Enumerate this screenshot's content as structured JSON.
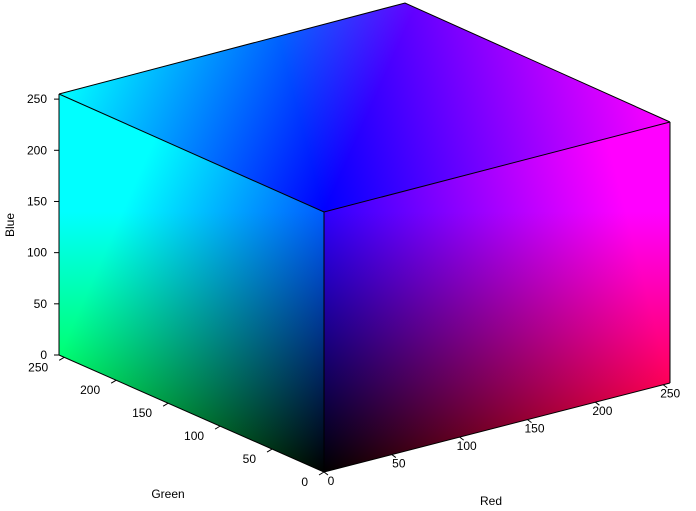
{
  "chart_data": {
    "type": "rgb-color-cube",
    "title": "",
    "axes": {
      "x": {
        "label": "Red",
        "range": [
          0,
          255
        ],
        "ticks": [
          0,
          50,
          100,
          150,
          200,
          250
        ]
      },
      "y": {
        "label": "Green",
        "range": [
          0,
          255
        ],
        "ticks": [
          0,
          50,
          100,
          150,
          200,
          250
        ]
      },
      "z": {
        "label": "Blue",
        "range": [
          0,
          255
        ],
        "ticks": [
          0,
          50,
          100,
          150,
          200,
          250
        ]
      }
    },
    "grid": false,
    "visible_faces": [
      {
        "name": "green-zero-face",
        "axes": [
          "Red",
          "Blue"
        ],
        "corners": {
          "black": "#000000",
          "red": "#ff0000",
          "blue": "#0000ff",
          "magenta": "#ff00ff"
        }
      },
      {
        "name": "red-zero-face",
        "axes": [
          "Green",
          "Blue"
        ],
        "corners": {
          "black": "#000000",
          "green": "#00ff00",
          "blue": "#0000ff",
          "cyan": "#00ffff"
        }
      },
      {
        "name": "blue-max-face",
        "axes": [
          "Red",
          "Green"
        ],
        "corners": {
          "blue": "#0000ff",
          "magenta": "#ff00ff",
          "cyan": "#00ffff",
          "white": "#ffffff"
        }
      }
    ]
  }
}
